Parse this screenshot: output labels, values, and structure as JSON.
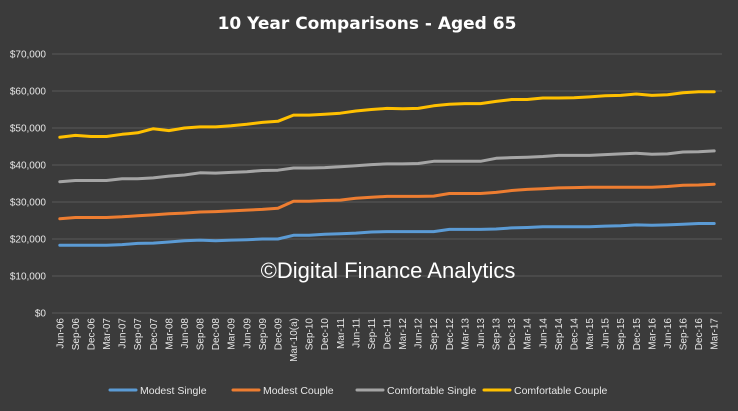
{
  "chart_data": {
    "type": "line",
    "title": "10 Year Comparisons - Aged 65",
    "watermark": "©Digital Finance Analytics",
    "ylim": [
      0,
      70000
    ],
    "y_ticks": [
      0,
      10000,
      20000,
      30000,
      40000,
      50000,
      60000,
      70000
    ],
    "y_tick_labels": [
      "$0",
      "$10,000",
      "$20,000",
      "$30,000",
      "$40,000",
      "$50,000",
      "$60,000",
      "$70,000"
    ],
    "x_tick_labels": [
      "Jun-06",
      "Sep-06",
      "Dec-06",
      "Mar-07",
      "Jun-07",
      "Sep-07",
      "Dec-07",
      "Mar-08",
      "Jun-08",
      "Sep-08",
      "Dec-08",
      "Mar-09",
      "Jun-09",
      "Sep-09",
      "Dec-09",
      "Mar-10(a)",
      "Sep-10",
      "Dec-10",
      "Mar-11",
      "Jun-11",
      "Sep-11",
      "Dec-11",
      "Mar-12",
      "Jun-12",
      "Sep-12",
      "Dec-12",
      "Mar-13",
      "Jun-13",
      "Sep-13",
      "Dec-13",
      "Mar-14",
      "Jun-14",
      "Sep-14",
      "Dec-14",
      "Mar-15",
      "Jun-15",
      "Sep-15",
      "Dec-15",
      "Mar-16",
      "Jun-16",
      "Sep-16",
      "Dec-16",
      "Mar-17"
    ],
    "grid": true,
    "legend_position": "bottom",
    "series": [
      {
        "name": "Modest Single",
        "color": "#5b9bd5",
        "values": [
          18300,
          18300,
          18300,
          18300,
          18500,
          18800,
          18900,
          19200,
          19500,
          19700,
          19500,
          19700,
          19800,
          20000,
          20000,
          21000,
          21000,
          21300,
          21400,
          21600,
          21900,
          22000,
          22000,
          22000,
          22000,
          22600,
          22600,
          22600,
          22700,
          23000,
          23100,
          23300,
          23300,
          23300,
          23300,
          23500,
          23600,
          23800,
          23700,
          23800,
          24000,
          24200,
          24200
        ]
      },
      {
        "name": "Modest Couple",
        "color": "#ed7d31",
        "values": [
          25500,
          25800,
          25800,
          25800,
          26000,
          26300,
          26500,
          26800,
          27000,
          27300,
          27400,
          27600,
          27800,
          28000,
          28300,
          30200,
          30200,
          30400,
          30500,
          31000,
          31300,
          31500,
          31500,
          31500,
          31600,
          32300,
          32300,
          32300,
          32600,
          33100,
          33400,
          33600,
          33800,
          33900,
          34000,
          34000,
          34000,
          34000,
          34000,
          34200,
          34500,
          34600,
          34800
        ]
      },
      {
        "name": "Comfortable Single",
        "color": "#a5a5a5",
        "values": [
          35500,
          35800,
          35800,
          35800,
          36300,
          36300,
          36500,
          37000,
          37300,
          37900,
          37800,
          38000,
          38200,
          38500,
          38600,
          39200,
          39200,
          39300,
          39500,
          39800,
          40100,
          40300,
          40300,
          40400,
          41000,
          41000,
          41000,
          41000,
          41800,
          42000,
          42100,
          42300,
          42600,
          42600,
          42600,
          42800,
          43000,
          43200,
          42900,
          43000,
          43500,
          43600,
          43800
        ]
      },
      {
        "name": "Comfortable Couple",
        "color": "#ffc000",
        "values": [
          47500,
          48000,
          47700,
          47700,
          48300,
          48700,
          49800,
          49300,
          50000,
          50300,
          50300,
          50600,
          51000,
          51500,
          51800,
          53500,
          53500,
          53700,
          54000,
          54600,
          55000,
          55300,
          55200,
          55300,
          56000,
          56400,
          56600,
          56600,
          57200,
          57700,
          57700,
          58100,
          58100,
          58200,
          58400,
          58700,
          58800,
          59200,
          58800,
          59000,
          59500,
          59800,
          59800
        ]
      }
    ]
  }
}
